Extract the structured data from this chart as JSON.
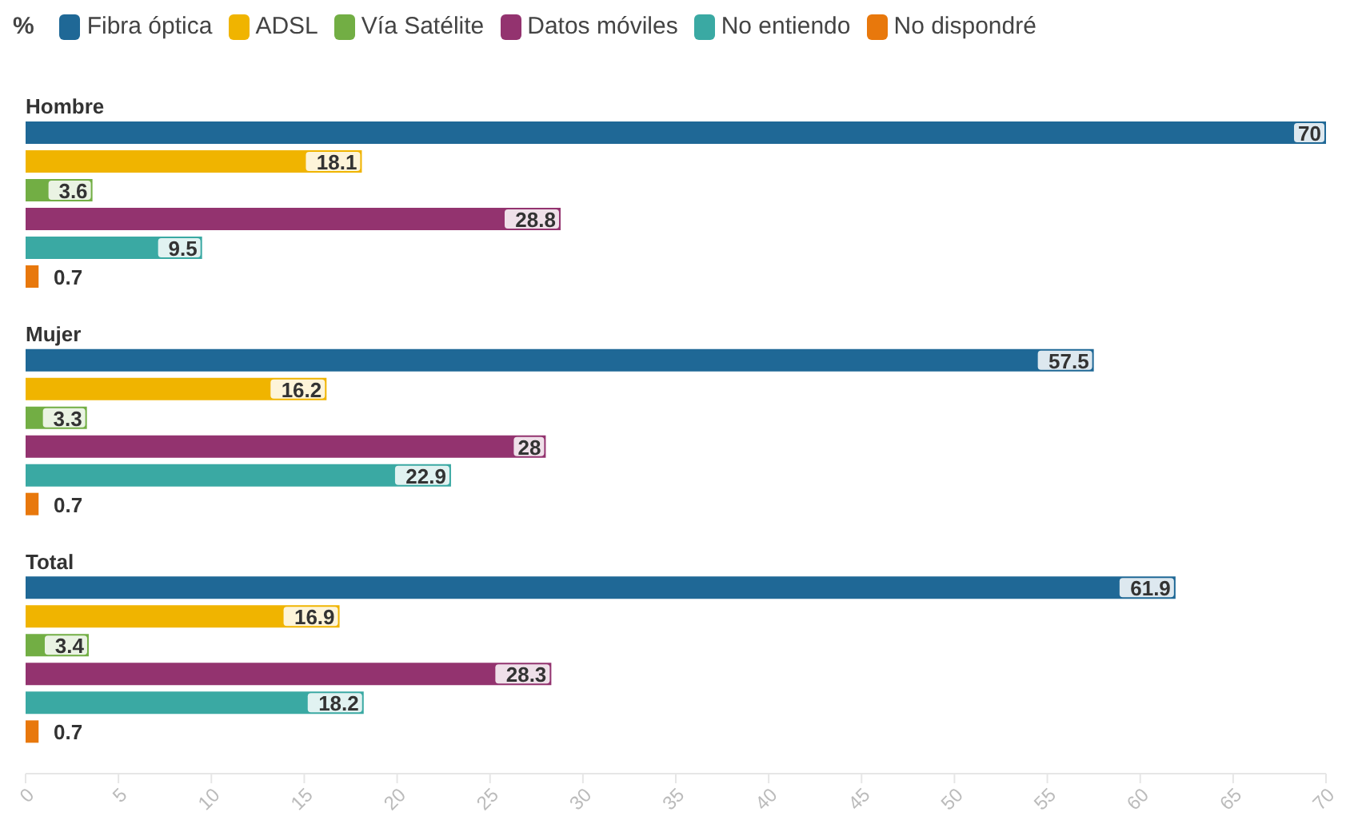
{
  "chart_data": {
    "type": "bar",
    "orientation": "horizontal",
    "legend_title": "%",
    "legend": "top left",
    "categories": [
      "Hombre",
      "Mujer",
      "Total"
    ],
    "series": [
      {
        "name": "Fibra óptica",
        "color": "#1f6896",
        "values": [
          70,
          57.5,
          61.9
        ]
      },
      {
        "name": "ADSL",
        "color": "#f0b400",
        "values": [
          18.1,
          16.2,
          16.9
        ]
      },
      {
        "name": "Vía Satélite",
        "color": "#72ae44",
        "values": [
          3.6,
          3.3,
          3.4
        ]
      },
      {
        "name": "Datos móviles",
        "color": "#93336f",
        "values": [
          28.8,
          28,
          28.3
        ]
      },
      {
        "name": "No entiendo",
        "color": "#3aa9a3",
        "values": [
          9.5,
          22.9,
          18.2
        ]
      },
      {
        "name": "No dispondré",
        "color": "#e8780c",
        "values": [
          0.7,
          0.7,
          0.7
        ]
      }
    ],
    "xlim": [
      0,
      70
    ],
    "xticks": [
      0,
      5,
      10,
      15,
      20,
      25,
      30,
      35,
      40,
      45,
      50,
      55,
      60,
      65,
      70
    ],
    "data_labels": true,
    "grid": false
  }
}
